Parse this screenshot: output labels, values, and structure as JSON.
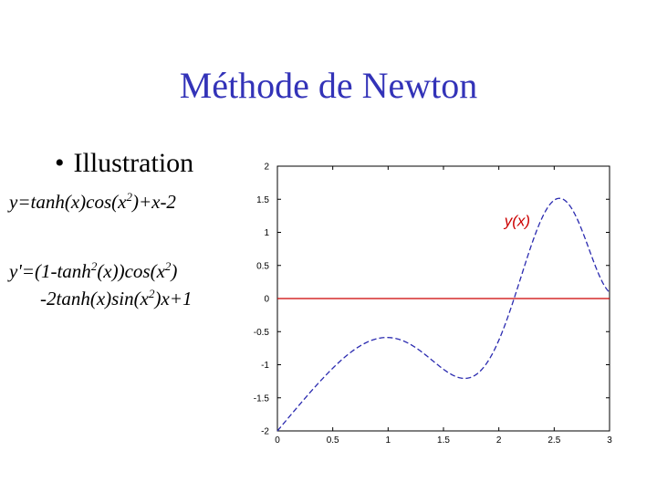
{
  "slide": {
    "title": "Méthode de Newton",
    "bullet": "Illustration"
  },
  "formulas": {
    "f": {
      "pre": "y=tanh(x)cos(x",
      "sup1": "2",
      "post": ")+x-2"
    },
    "fprime_line1": {
      "a": "y'=(1-tanh",
      "sup1": "2",
      "b": "(x))cos(x",
      "sup2": "2",
      "c": ")"
    },
    "fprime_line2": {
      "a": "-2tanh(x)sin(x",
      "sup1": "2",
      "b": ")x+1"
    }
  },
  "colors": {
    "title": "#3333b8",
    "curve": "#2b2bb0",
    "zero_line": "#cc0000",
    "label": "#cc0000"
  },
  "chart_data": {
    "type": "line",
    "xlim": [
      0,
      3
    ],
    "ylim": [
      -2,
      2
    ],
    "xticks": [
      0,
      0.5,
      1,
      1.5,
      2,
      2.5,
      3
    ],
    "yticks": [
      2,
      1.5,
      1,
      0.5,
      0,
      -0.5,
      -1,
      -1.5,
      -2
    ],
    "grid": false,
    "series": [
      {
        "name": "y(x)",
        "function": "tanh(x)*cos(x^2)+x-2",
        "style": "dashed",
        "color": "#2b2bb0"
      },
      {
        "name": "",
        "function": "0",
        "style": "solid",
        "color": "#cc0000"
      }
    ],
    "annotations": [
      {
        "text": "y(x)",
        "x": 2.05,
        "y": 1.1
      }
    ]
  }
}
